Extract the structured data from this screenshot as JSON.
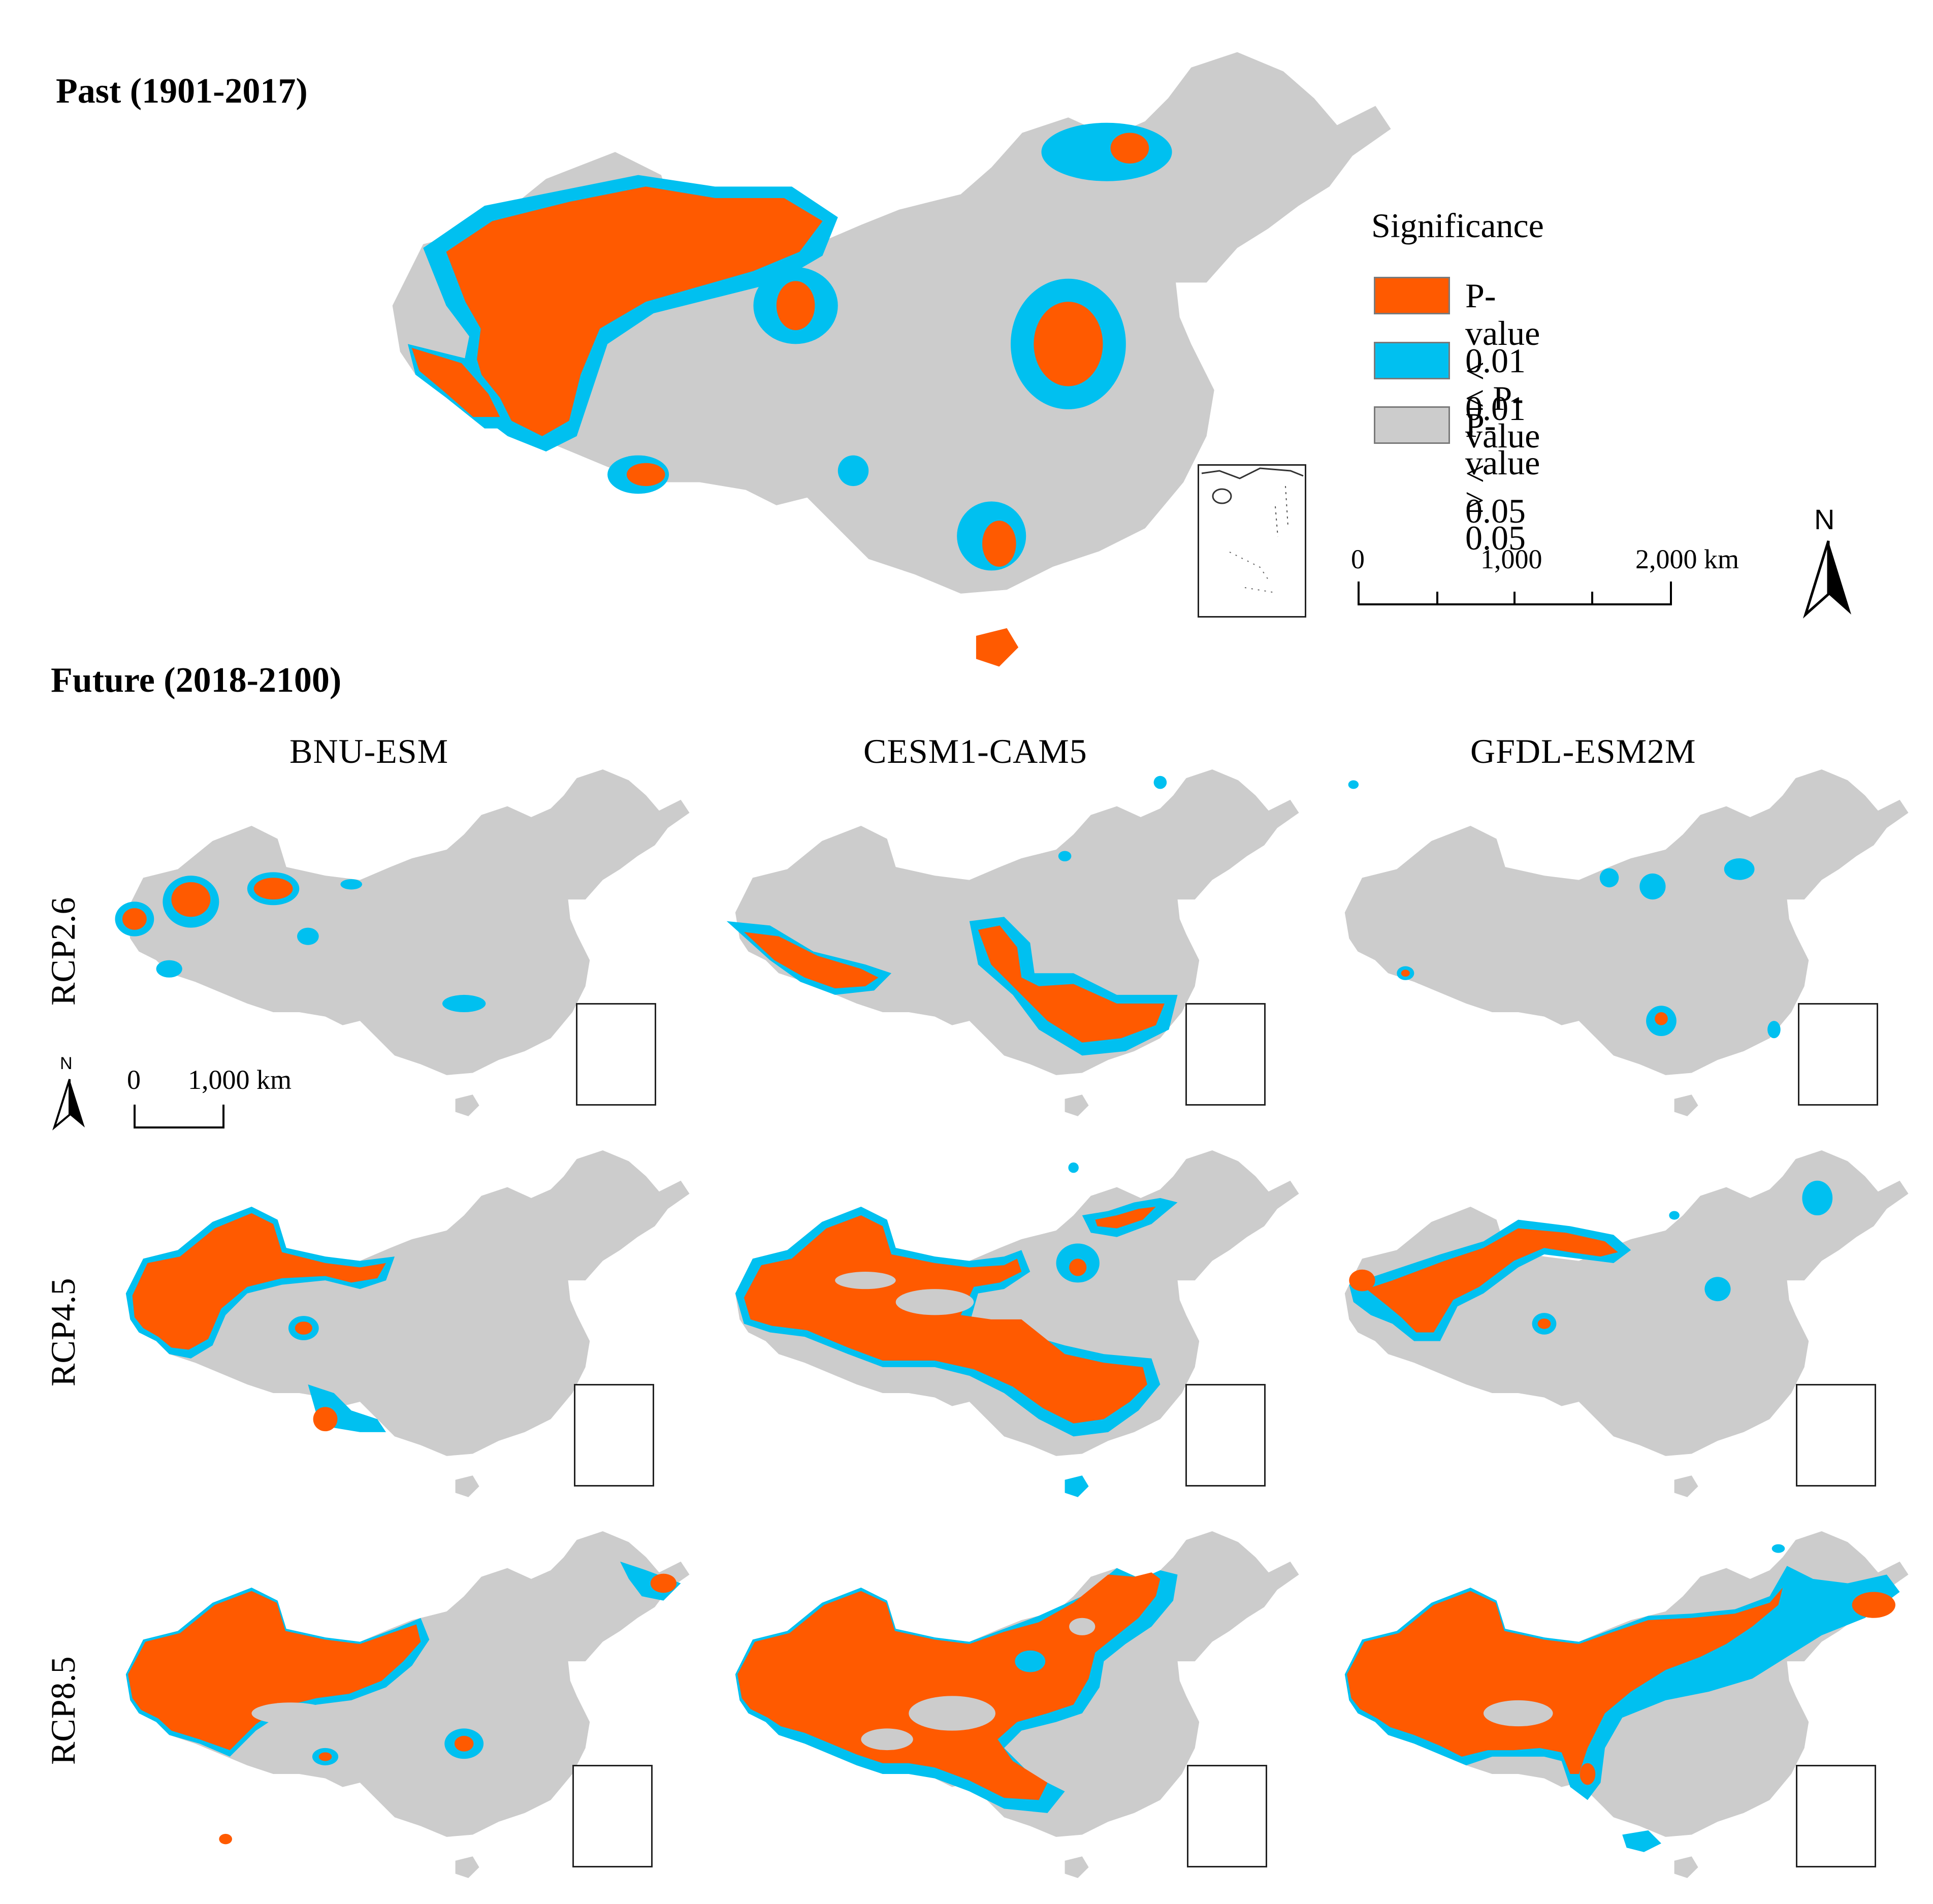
{
  "past": {
    "title": "Past (1901-2017)"
  },
  "future": {
    "title": "Future (2018-2100)"
  },
  "models": [
    "BNU-ESM",
    "CESM1-CAM5",
    "GFDL-ESM2M"
  ],
  "scenarios": [
    "RCP2.6",
    "RCP4.5",
    "RCP8.5"
  ],
  "legend": {
    "title": "Significance",
    "items": [
      {
        "label": "P-value < 0.01",
        "color": "#ff5a00"
      },
      {
        "label": "0.01 ≤ P-value < 0.05",
        "color": "#00c0f0"
      },
      {
        "label": "P-value ≥ 0.05",
        "color": "#cccccc"
      }
    ]
  },
  "scalebar_main": {
    "ticks": [
      "0",
      "1,000",
      "2,000 km"
    ]
  },
  "scalebar_small": {
    "ticks": [
      "0",
      "1,000 km"
    ]
  },
  "north_label": "N",
  "colors": {
    "significant_01": "#ff5a00",
    "significant_05": "#00c0f0",
    "not_significant": "#cccccc"
  }
}
